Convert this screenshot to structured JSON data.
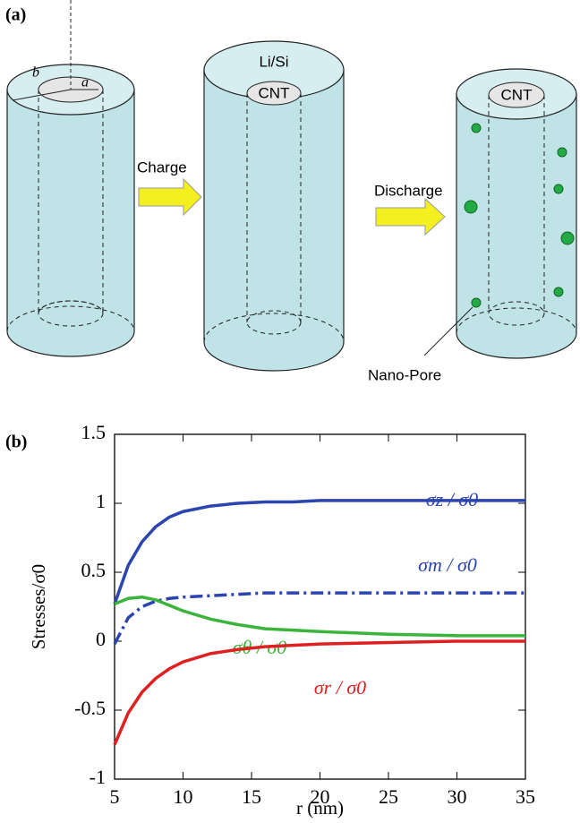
{
  "diagram": {
    "panel_label": "(a)",
    "radius_outer": "b",
    "radius_inner": "a",
    "step1": "Charge",
    "shell": "Li/Si",
    "core_middle": "CNT",
    "step2": "Discharge",
    "core_right": "CNT",
    "pore_label": "Nano-Pore"
  },
  "chart_data": {
    "type": "line",
    "panel_label": "(b)",
    "x_label": "r (nm)",
    "y_label": "Stresses/σ0",
    "x": [
      5,
      6,
      7,
      8,
      9,
      10,
      12,
      14,
      16,
      18,
      20,
      25,
      30,
      35
    ],
    "series": [
      {
        "name": "σz / σ0",
        "color": "#2b44b0",
        "style": "solid",
        "values": [
          0.27,
          0.55,
          0.72,
          0.83,
          0.9,
          0.94,
          0.98,
          1.0,
          1.01,
          1.01,
          1.02,
          1.02,
          1.02,
          1.02
        ]
      },
      {
        "name": "σm / σ0",
        "color": "#2b44b0",
        "style": "dashdot",
        "values": [
          -0.02,
          0.17,
          0.25,
          0.29,
          0.31,
          0.32,
          0.33,
          0.34,
          0.35,
          0.35,
          0.35,
          0.35,
          0.35,
          0.35
        ]
      },
      {
        "name": "σθ / σ0",
        "color": "#3cb43c",
        "style": "solid",
        "values": [
          0.27,
          0.31,
          0.32,
          0.3,
          0.26,
          0.22,
          0.16,
          0.12,
          0.09,
          0.08,
          0.07,
          0.05,
          0.04,
          0.04
        ]
      },
      {
        "name": "σr / σ0",
        "color": "#e02020",
        "style": "solid",
        "values": [
          -0.75,
          -0.52,
          -0.37,
          -0.27,
          -0.2,
          -0.15,
          -0.09,
          -0.06,
          -0.04,
          -0.03,
          -0.02,
          -0.01,
          0,
          0
        ]
      }
    ],
    "xlim": [
      5,
      35
    ],
    "xticks": [
      5,
      10,
      15,
      20,
      25,
      30,
      35
    ],
    "ylim": [
      -1,
      1.5
    ],
    "yticks": [
      -1,
      -0.5,
      0,
      0.5,
      1,
      1.5
    ]
  }
}
